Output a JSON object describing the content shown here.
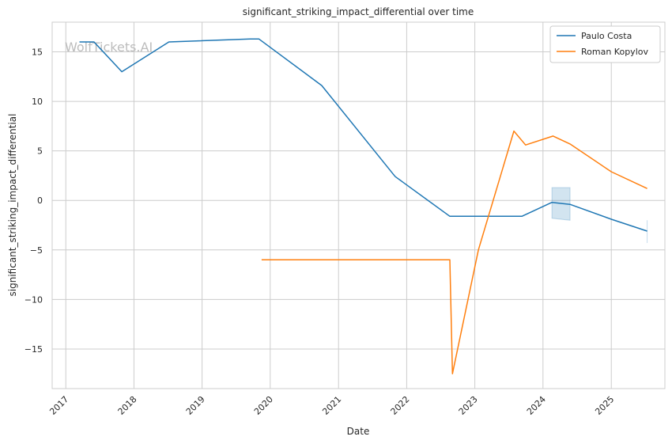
{
  "chart_data": {
    "type": "line",
    "title": "significant_striking_impact_differential over time",
    "xlabel": "Date",
    "ylabel": "significant_striking_impact_differential",
    "x_ticks": [
      "2017",
      "2018",
      "2019",
      "2020",
      "2021",
      "2022",
      "2023",
      "2024",
      "2025"
    ],
    "y_ticks": [
      "15",
      "10",
      "5",
      "0",
      "−5",
      "−10",
      "−15"
    ],
    "xlim": [
      "2016-10-20",
      "2025-10-15"
    ],
    "ylim": [
      -19.0,
      18.0
    ],
    "grid": true,
    "legend_position": "top-right",
    "watermark": "WolfTickets.AI",
    "colors": {
      "Paulo Costa": "#1f77b4",
      "Roman Kopylov": "#ff7f0e",
      "grid": "#cccccc",
      "axes": "#cccccc"
    },
    "series": [
      {
        "name": "Paulo Costa",
        "color": "#1f77b4",
        "points": [
          [
            "2017-03-15",
            16.0
          ],
          [
            "2017-06-01",
            16.0
          ],
          [
            "2017-10-28",
            13.0
          ],
          [
            "2018-07-07",
            16.0
          ],
          [
            "2019-09-15",
            16.3
          ],
          [
            "2019-11-02",
            16.3
          ],
          [
            "2020-10-03",
            11.6
          ],
          [
            "2021-10-23",
            2.6
          ],
          [
            "2021-11-01",
            2.4
          ],
          [
            "2022-08-20",
            -1.6
          ],
          [
            "2023-09-10",
            -1.6
          ],
          [
            "2024-02-18",
            -0.2
          ],
          [
            "2024-05-25",
            -0.4
          ],
          [
            "2025-01-01",
            -1.9
          ],
          [
            "2025-07-12",
            -3.1
          ]
        ],
        "bands": [
          {
            "x": [
              "2024-02-18",
              "2024-05-25"
            ],
            "lower": [
              -1.8,
              -2.0
            ],
            "upper": [
              1.3,
              1.3
            ]
          },
          {
            "x": [
              "2025-07-12",
              "2025-07-12"
            ],
            "lower": [
              -4.3,
              -4.3
            ],
            "upper": [
              -2.0,
              -2.0
            ]
          }
        ]
      },
      {
        "name": "Roman Kopylov",
        "color": "#ff7f0e",
        "points": [
          [
            "2019-11-16",
            -6.0
          ],
          [
            "2022-08-20",
            -6.0
          ],
          [
            "2022-09-03",
            -17.5
          ],
          [
            "2023-01-20",
            -5.0
          ],
          [
            "2023-07-29",
            7.0
          ],
          [
            "2023-09-30",
            5.6
          ],
          [
            "2024-02-24",
            6.5
          ],
          [
            "2024-05-25",
            5.7
          ],
          [
            "2025-01-01",
            2.9
          ],
          [
            "2025-07-12",
            1.2
          ]
        ]
      }
    ]
  }
}
